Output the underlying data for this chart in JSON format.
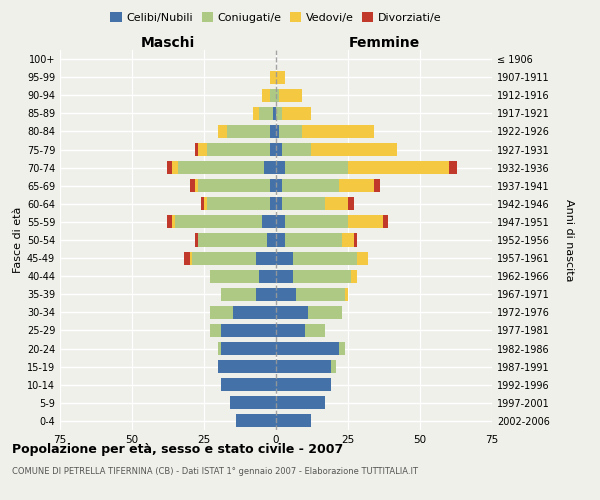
{
  "age_groups": [
    "0-4",
    "5-9",
    "10-14",
    "15-19",
    "20-24",
    "25-29",
    "30-34",
    "35-39",
    "40-44",
    "45-49",
    "50-54",
    "55-59",
    "60-64",
    "65-69",
    "70-74",
    "75-79",
    "80-84",
    "85-89",
    "90-94",
    "95-99",
    "100+"
  ],
  "birth_years": [
    "2002-2006",
    "1997-2001",
    "1992-1996",
    "1987-1991",
    "1982-1986",
    "1977-1981",
    "1972-1976",
    "1967-1971",
    "1962-1966",
    "1957-1961",
    "1952-1956",
    "1947-1951",
    "1942-1946",
    "1937-1941",
    "1932-1936",
    "1927-1931",
    "1922-1926",
    "1917-1921",
    "1912-1916",
    "1907-1911",
    "≤ 1906"
  ],
  "colors": {
    "celibi": "#4472a8",
    "coniugati": "#adc983",
    "vedovi": "#f5c842",
    "divorziati": "#c0392b"
  },
  "male_celibi": [
    14,
    16,
    19,
    20,
    19,
    19,
    15,
    7,
    6,
    7,
    3,
    5,
    2,
    2,
    4,
    2,
    2,
    1,
    0,
    0,
    0
  ],
  "male_coniugati": [
    0,
    0,
    0,
    0,
    1,
    4,
    8,
    12,
    17,
    22,
    24,
    30,
    22,
    25,
    30,
    22,
    15,
    5,
    2,
    0,
    0
  ],
  "male_vedovi": [
    0,
    0,
    0,
    0,
    0,
    0,
    0,
    0,
    0,
    1,
    0,
    1,
    1,
    1,
    2,
    3,
    3,
    2,
    3,
    2,
    0
  ],
  "male_divorziati": [
    0,
    0,
    0,
    0,
    0,
    0,
    0,
    0,
    0,
    2,
    1,
    2,
    1,
    2,
    2,
    1,
    0,
    0,
    0,
    0,
    0
  ],
  "female_nubili": [
    12,
    17,
    19,
    19,
    22,
    10,
    11,
    7,
    6,
    6,
    3,
    3,
    2,
    2,
    3,
    2,
    1,
    0,
    0,
    0,
    0
  ],
  "female_coniugate": [
    0,
    0,
    0,
    2,
    2,
    7,
    12,
    17,
    20,
    22,
    20,
    22,
    15,
    20,
    22,
    10,
    8,
    2,
    1,
    0,
    0
  ],
  "female_vedove": [
    0,
    0,
    0,
    0,
    0,
    0,
    0,
    1,
    2,
    4,
    4,
    12,
    8,
    12,
    35,
    30,
    25,
    10,
    8,
    3,
    0
  ],
  "female_divorziate": [
    0,
    0,
    0,
    0,
    0,
    0,
    0,
    0,
    0,
    0,
    1,
    2,
    2,
    2,
    3,
    0,
    0,
    0,
    0,
    0,
    0
  ],
  "title": "Popolazione per età, sesso e stato civile - 2007",
  "subtitle": "COMUNE DI PETRELLA TIFERNINA (CB) - Dati ISTAT 1° gennaio 2007 - Elaborazione TUTTITALIA.IT",
  "label_maschi": "Maschi",
  "label_femmine": "Femmine",
  "ylabel_left": "Fasce di età",
  "ylabel_right": "Anni di nascita",
  "legend_labels": [
    "Celibi/Nubili",
    "Coniugati/e",
    "Vedovi/e",
    "Divorziati/e"
  ],
  "xlim": 75,
  "bg_color": "#f0f0eb"
}
